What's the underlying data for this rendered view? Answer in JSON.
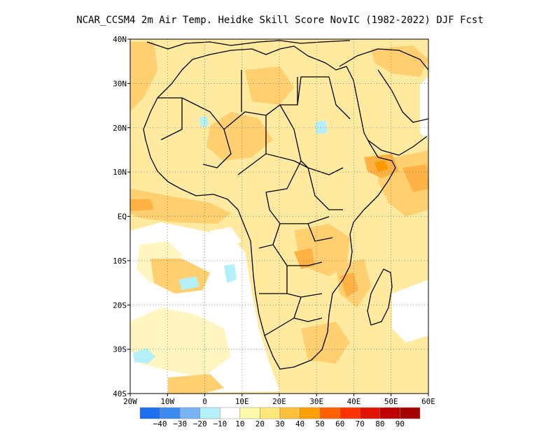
{
  "title": "NCAR_CCSM4  2m Air Temp. Heidke Skill Score NovIC (1982-2022) DJF Fcst",
  "map": {
    "lon_range": [
      -20,
      60
    ],
    "lat_range": [
      -40,
      40
    ],
    "lon_ticks": [
      {
        "value": -20,
        "label": "20W"
      },
      {
        "value": -10,
        "label": "10W"
      },
      {
        "value": 0,
        "label": "0"
      },
      {
        "value": 10,
        "label": "10E"
      },
      {
        "value": 20,
        "label": "20E"
      },
      {
        "value": 30,
        "label": "30E"
      },
      {
        "value": 40,
        "label": "40E"
      },
      {
        "value": 50,
        "label": "50E"
      },
      {
        "value": 60,
        "label": "60E"
      }
    ],
    "lat_ticks": [
      {
        "value": 40,
        "label": "40N"
      },
      {
        "value": 30,
        "label": "30N"
      },
      {
        "value": 20,
        "label": "20N"
      },
      {
        "value": 10,
        "label": "10N"
      },
      {
        "value": 0,
        "label": "EQ"
      },
      {
        "value": -10,
        "label": "10S"
      },
      {
        "value": -20,
        "label": "20S"
      },
      {
        "value": -30,
        "label": "30S"
      },
      {
        "value": -40,
        "label": "40S"
      }
    ],
    "grid": "dotted",
    "background_color": "#ffeaa0"
  },
  "colorbar": {
    "colors": [
      "#1e6ef0",
      "#3c8cf0",
      "#78b4f5",
      "#b4f0fa",
      "#ffffff",
      "#fffaaa",
      "#ffe878",
      "#ffc03c",
      "#ffa000",
      "#ff6000",
      "#ff3200",
      "#e11400",
      "#c00000",
      "#a50000"
    ],
    "labels": [
      "-40",
      "-30",
      "-20",
      "-10",
      "10",
      "20",
      "30",
      "40",
      "50",
      "60",
      "70",
      "80",
      "90"
    ]
  },
  "fields": {
    "light": "#fff5c0",
    "pale": "#ffe8a0",
    "mid": "#ffcf70",
    "strong": "#ffb244",
    "orange": "#ff9900",
    "cyan": "#b4f0fa"
  }
}
